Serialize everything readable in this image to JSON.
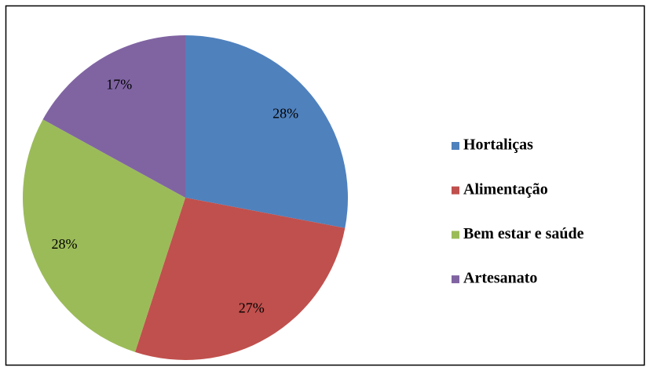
{
  "chart_data": {
    "type": "pie",
    "categories": [
      "Hortaliças",
      "Alimentação",
      "Bem estar e saúde",
      "Artesanato"
    ],
    "values": [
      28,
      27,
      28,
      17
    ],
    "value_labels": [
      "28%",
      "27%",
      "28%",
      "17%"
    ],
    "colors": [
      "#4f81bd",
      "#c0504d",
      "#9bbb59",
      "#8064a2"
    ],
    "legend": "right"
  }
}
